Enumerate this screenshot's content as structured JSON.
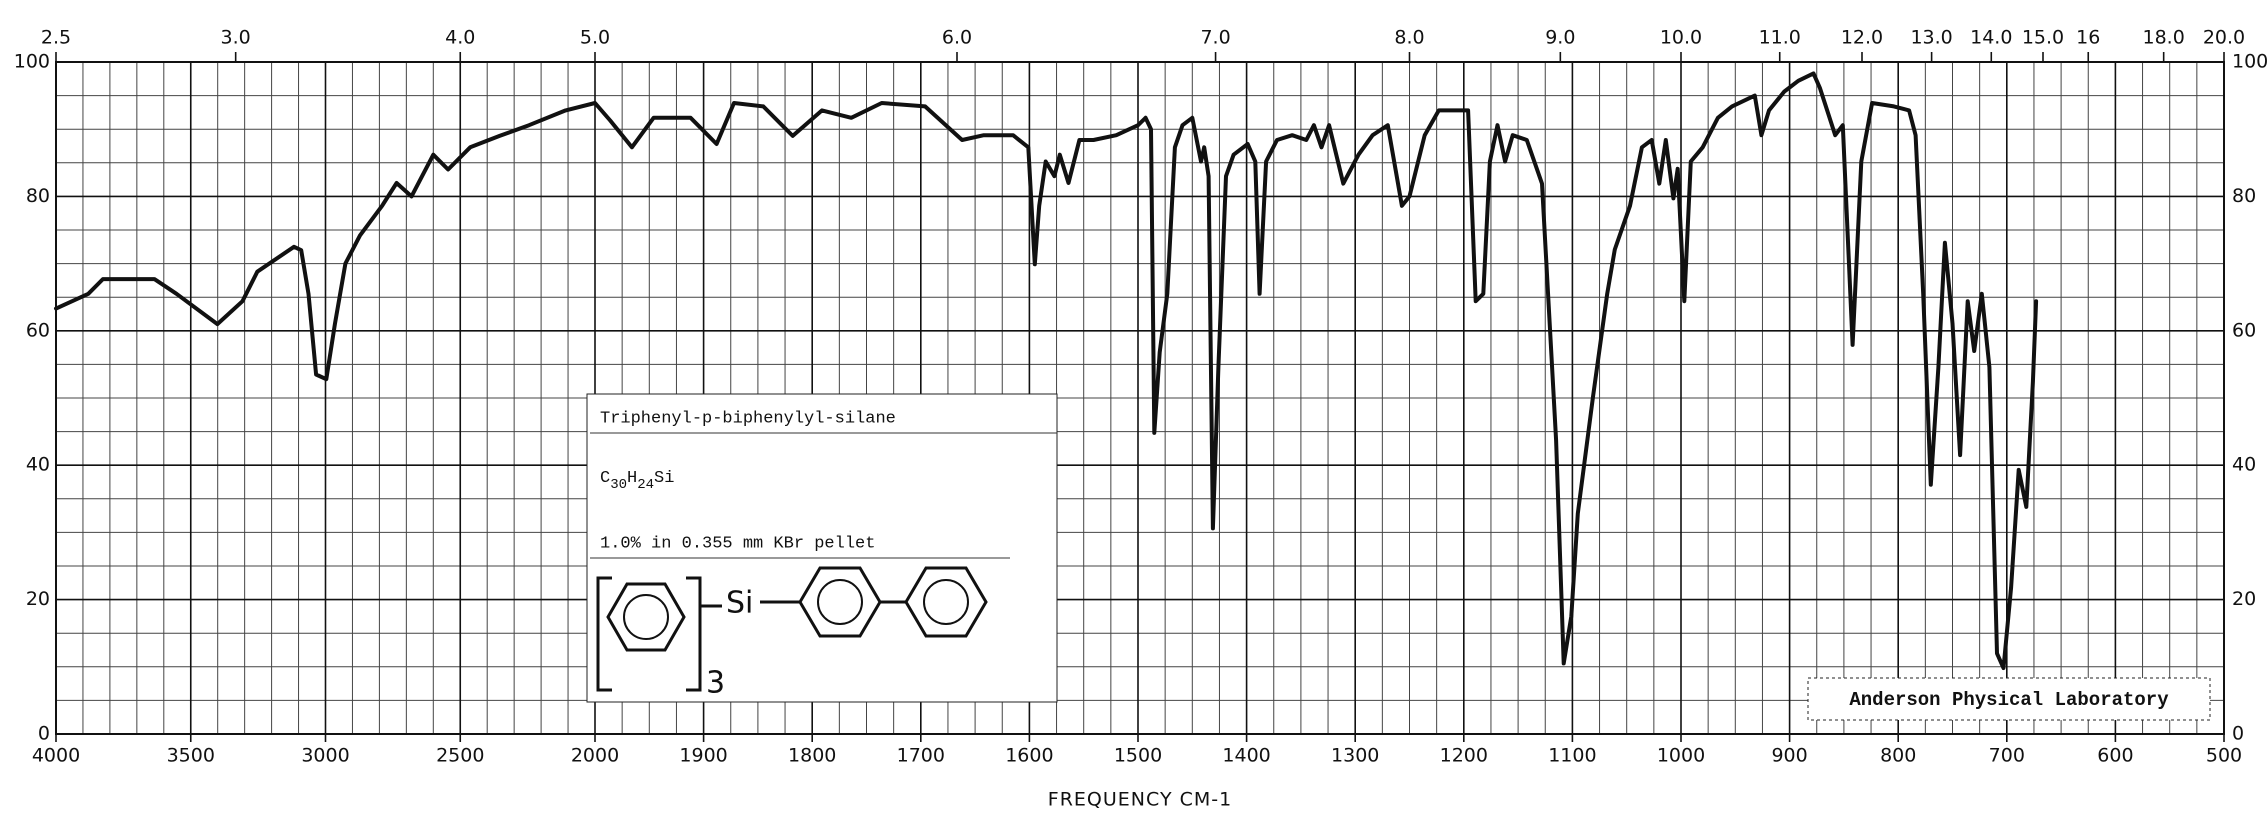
{
  "chart_data": {
    "type": "line",
    "xlabel": "FREQUENCY   CM-1",
    "annotations": {
      "compound": "Triphenyl-p-biphenylyl-silane",
      "formula": [
        "C",
        "30",
        "H",
        "24",
        "Si"
      ],
      "sample": "1.0% in 0.355 mm  KBr pellet",
      "structure_atom": "Si",
      "structure_count": "3",
      "lab": "Anderson Physical Laboratory"
    },
    "xlim": [
      4000,
      500
    ],
    "x_break": 2000,
    "xticks": [
      4000,
      3500,
      3000,
      2500,
      2000,
      1900,
      1800,
      1700,
      1600,
      1500,
      1400,
      1300,
      1200,
      1100,
      1000,
      900,
      800,
      700,
      600,
      500
    ],
    "x2ticks": [
      2.5,
      {
        "value": 3,
        "label": "3.0"
      },
      {
        "value": 4,
        "label": "4.0"
      },
      {
        "value": 5,
        "label": "5.0"
      },
      {
        "value": 6,
        "label": "6.0"
      },
      {
        "value": 7,
        "label": "7.0"
      },
      {
        "value": 8,
        "label": "8.0"
      },
      {
        "value": 9,
        "label": "9.0"
      },
      {
        "value": 10,
        "label": "10.0"
      },
      {
        "value": 11,
        "label": "11.0"
      },
      {
        "value": 12,
        "label": "12.0"
      },
      {
        "value": 13,
        "label": "13.0"
      },
      {
        "value": 14,
        "label": "14.0"
      },
      {
        "value": 15,
        "label": "15.0"
      },
      16,
      {
        "value": 18,
        "label": "18.0"
      },
      {
        "value": 20,
        "label": "20.0"
      }
    ],
    "ylim": [
      0,
      100
    ],
    "yticks": [
      0,
      20,
      40,
      60,
      80,
      100
    ],
    "grid": true,
    "color": "#111111",
    "x": [
      4000,
      3880,
      3826,
      3771,
      3635,
      3553,
      3401,
      3308,
      3253,
      3117,
      3090,
      3063,
      3035,
      2997,
      2965,
      2926,
      2872,
      2790,
      2736,
      2681,
      2600,
      2545,
      2463,
      2354,
      2245,
      2109,
      2000,
      1986,
      1966,
      1946,
      1912,
      1888,
      1872,
      1845,
      1818,
      1791,
      1764,
      1736,
      1696,
      1662,
      1642,
      1615,
      1601,
      1595,
      1591,
      1585,
      1577,
      1572,
      1564,
      1554,
      1541,
      1520,
      1500,
      1493,
      1488,
      1485,
      1480,
      1473,
      1466,
      1459,
      1450,
      1442,
      1439,
      1435,
      1431,
      1426,
      1419,
      1412,
      1399,
      1392,
      1388,
      1382,
      1372,
      1358,
      1345,
      1338,
      1331,
      1324,
      1311,
      1297,
      1284,
      1270,
      1257,
      1250,
      1236,
      1223,
      1196,
      1189,
      1182,
      1176,
      1169,
      1162,
      1155,
      1142,
      1128,
      1115,
      1108,
      1101,
      1095,
      1081,
      1068,
      1061,
      1047,
      1036,
      1027,
      1020,
      1014,
      1007,
      1003,
      997,
      991,
      980,
      966,
      953,
      932,
      926,
      919,
      905,
      892,
      878,
      872,
      858,
      851,
      842,
      834,
      824,
      804,
      790,
      784,
      777,
      770,
      763,
      757,
      750,
      743,
      736,
      730,
      723,
      716,
      709,
      703,
      696,
      689,
      682,
      676,
      673
    ],
    "values": [
      63.3,
      65.5,
      67.7,
      67.7,
      67.7,
      65.5,
      61,
      64.4,
      68.8,
      72.5,
      72,
      65.5,
      53.5,
      52.8,
      61,
      70,
      74.2,
      78.6,
      82,
      80,
      86.2,
      84,
      87.3,
      89,
      90.6,
      92.8,
      93.9,
      91.3,
      87.3,
      91.7,
      91.7,
      87.8,
      93.9,
      93.4,
      89,
      92.8,
      91.7,
      93.9,
      93.4,
      88.4,
      89.1,
      89.1,
      87.3,
      69.9,
      78.6,
      85.2,
      83,
      86.2,
      82,
      88.4,
      88.4,
      89.1,
      90.6,
      91.7,
      90,
      44.8,
      56.8,
      65.5,
      87.3,
      90.6,
      91.7,
      85.2,
      87.3,
      83,
      30.6,
      54.6,
      83,
      86.2,
      87.8,
      85.2,
      65.5,
      85.2,
      88.4,
      89.1,
      88.4,
      90.6,
      87.3,
      90.6,
      81.9,
      86.2,
      89.1,
      90.6,
      78.6,
      80,
      89.1,
      92.8,
      92.8,
      64.4,
      65.5,
      85.2,
      90.6,
      85.2,
      89.1,
      88.4,
      81.9,
      43.7,
      10.5,
      17.5,
      32.8,
      50.2,
      65.5,
      72.1,
      78.6,
      87.3,
      88.4,
      81.9,
      88.4,
      79.7,
      84.1,
      64.4,
      85.2,
      87.3,
      91.7,
      93.4,
      95,
      89.1,
      92.8,
      95.6,
      97.2,
      98.3,
      96.1,
      89.1,
      90.6,
      57.9,
      85.2,
      93.9,
      93.4,
      92.8,
      89.1,
      65.5,
      37.1,
      54.6,
      73.1,
      61.1,
      41.5,
      64.4,
      57,
      65.5,
      54.6,
      12,
      9.8,
      21.8,
      39.3,
      33.8,
      52.4,
      64.4
    ]
  }
}
